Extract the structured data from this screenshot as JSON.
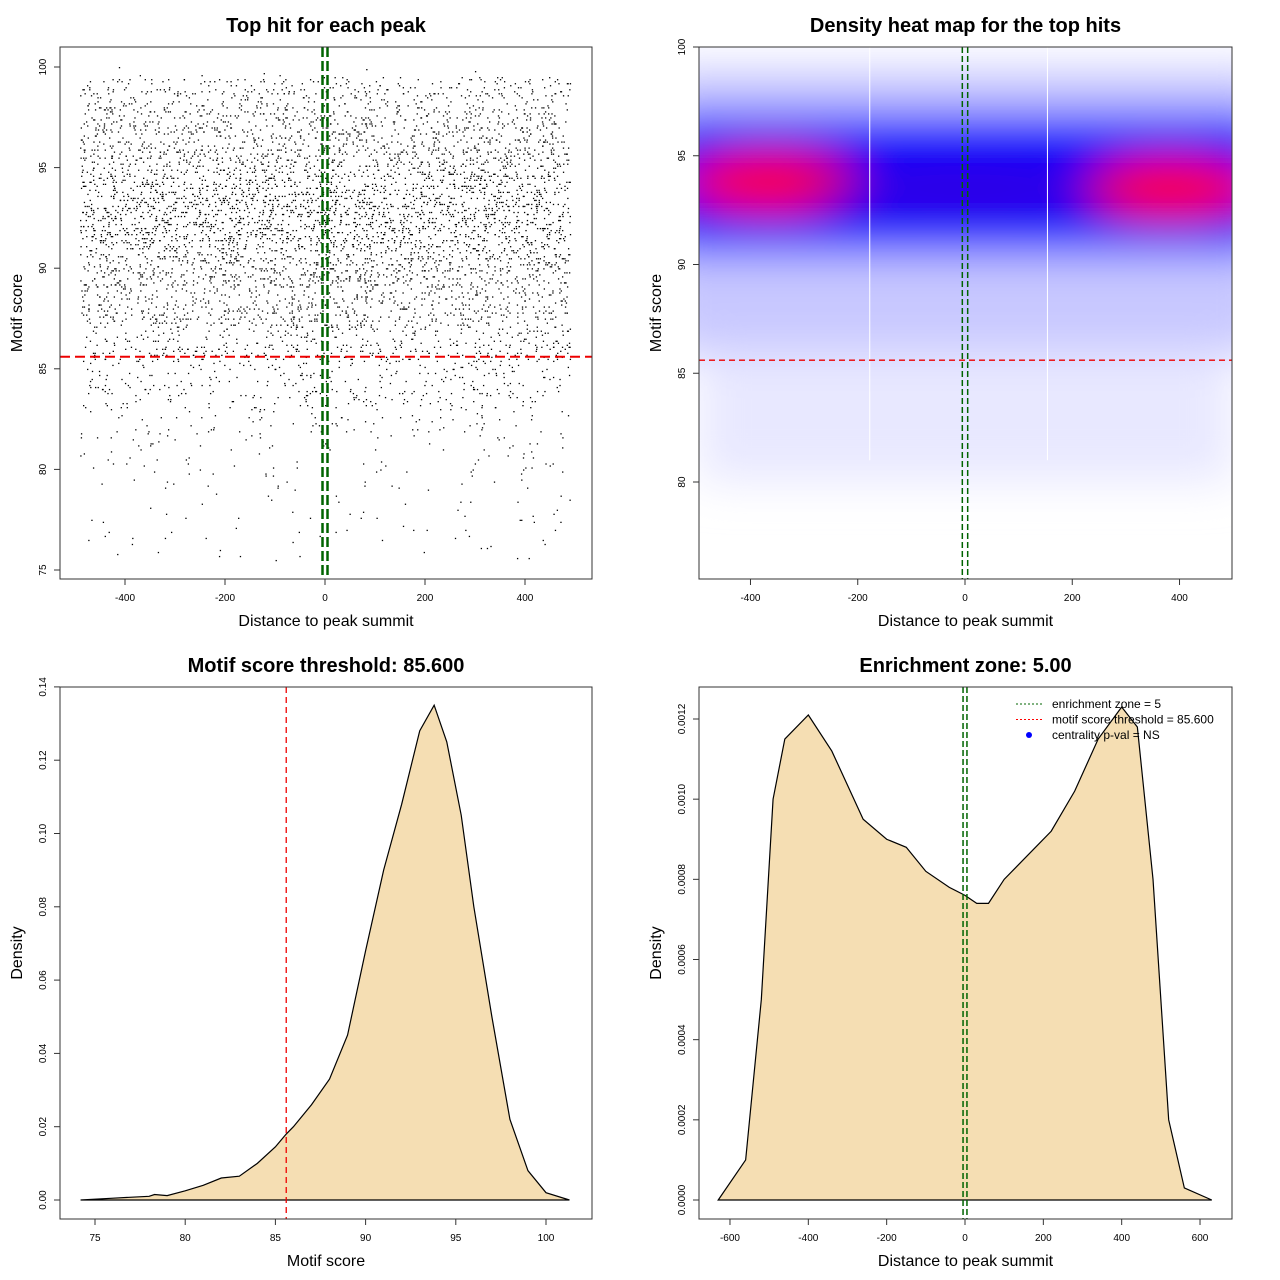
{
  "chart_data": [
    {
      "type": "scatter",
      "title": "Top hit for each peak",
      "xlabel": "Distance to peak summit",
      "ylabel": "Motif score",
      "xlim": [
        -500,
        500
      ],
      "ylim": [
        75,
        100.5
      ],
      "xticks": [
        -400,
        -200,
        0,
        200,
        400
      ],
      "yticks": [
        75,
        80,
        85,
        90,
        95,
        100
      ],
      "threshold": 85.6,
      "enrichment_zone": [
        -5,
        5
      ],
      "n_points_approx": 6000,
      "score_distribution_note": "points concentrated between 86 and 99, peak near 93-94"
    },
    {
      "type": "heatmap",
      "title": "Density heat map for the top hits",
      "xlabel": "Distance to peak summit",
      "ylabel": "Motif score",
      "xlim": [
        -497,
        497
      ],
      "ylim": [
        75.5,
        100
      ],
      "xticks": [
        -400,
        -200,
        0,
        200,
        400
      ],
      "yticks": [
        80,
        85,
        90,
        95,
        100
      ],
      "threshold": 85.6,
      "enrichment_zone": [
        -5,
        5
      ],
      "hotspots": [
        {
          "x": -360,
          "y": 93.8
        },
        {
          "x": 380,
          "y": 93.5
        }
      ],
      "colors": [
        "#ffffff",
        "#0000ff",
        "#ff0000"
      ]
    },
    {
      "type": "area",
      "title": "Motif score threshold: 85.600",
      "xlabel": "Motif score",
      "ylabel": "Density",
      "xlim": [
        73.5,
        101.5
      ],
      "ylim": [
        -0.004,
        0.14
      ],
      "xticks": [
        75,
        80,
        85,
        90,
        95,
        100
      ],
      "yticks": [
        "0.00",
        "0.02",
        "0.04",
        "0.06",
        "0.08",
        "0.10",
        "0.12",
        "0.14"
      ],
      "threshold": 85.6,
      "x": [
        74.2,
        76,
        78,
        78.3,
        79,
        80,
        81,
        82,
        83,
        84,
        85,
        85.6,
        86,
        87,
        88,
        89,
        90,
        91,
        92,
        93,
        93.8,
        94.5,
        95.3,
        96,
        97,
        98,
        99,
        100,
        101.3
      ],
      "y": [
        0,
        0.0005,
        0.001,
        0.0015,
        0.0012,
        0.0025,
        0.004,
        0.006,
        0.0065,
        0.01,
        0.0145,
        0.018,
        0.02,
        0.026,
        0.033,
        0.045,
        0.068,
        0.09,
        0.108,
        0.128,
        0.135,
        0.125,
        0.105,
        0.08,
        0.05,
        0.022,
        0.008,
        0.002,
        0
      ],
      "fill": "#f5deb3"
    },
    {
      "type": "area",
      "title": "Enrichment zone: 5.00",
      "xlabel": "Distance to peak summit",
      "ylabel": "Density",
      "xlim": [
        -682,
        680
      ],
      "ylim": [
        -3e-05,
        0.00127
      ],
      "xticks": [
        -600,
        -400,
        -200,
        0,
        200,
        400,
        600
      ],
      "yticks": [
        "0.0000",
        "0.0002",
        "0.0004",
        "0.0006",
        "0.0008",
        "0.0010",
        "0.0012"
      ],
      "enrichment_zone": [
        -5,
        5
      ],
      "x": [
        -630,
        -560,
        -520,
        -490,
        -460,
        -400,
        -340,
        -260,
        -200,
        -150,
        -100,
        -40,
        0,
        30,
        60,
        100,
        160,
        220,
        280,
        340,
        400,
        440,
        480,
        520,
        560,
        630
      ],
      "y": [
        0,
        0.0001,
        0.0005,
        0.001,
        0.00115,
        0.00121,
        0.00112,
        0.00095,
        0.0009,
        0.00088,
        0.00082,
        0.00078,
        0.00076,
        0.00074,
        0.00074,
        0.0008,
        0.00086,
        0.00092,
        0.00102,
        0.00115,
        0.00123,
        0.00118,
        0.0008,
        0.0002,
        3e-05,
        0
      ],
      "fill": "#f5deb3",
      "legend": {
        "position": "top-right",
        "entries": [
          {
            "label": "enrichment zone = 5",
            "color": "#006400",
            "style": "dotted"
          },
          {
            "label": "motif score threshold = 85.600",
            "color": "#ff0000",
            "style": "dotted"
          },
          {
            "label": "centrality p-val = NS",
            "color": "#0000ff",
            "style": "point"
          }
        ]
      }
    }
  ]
}
